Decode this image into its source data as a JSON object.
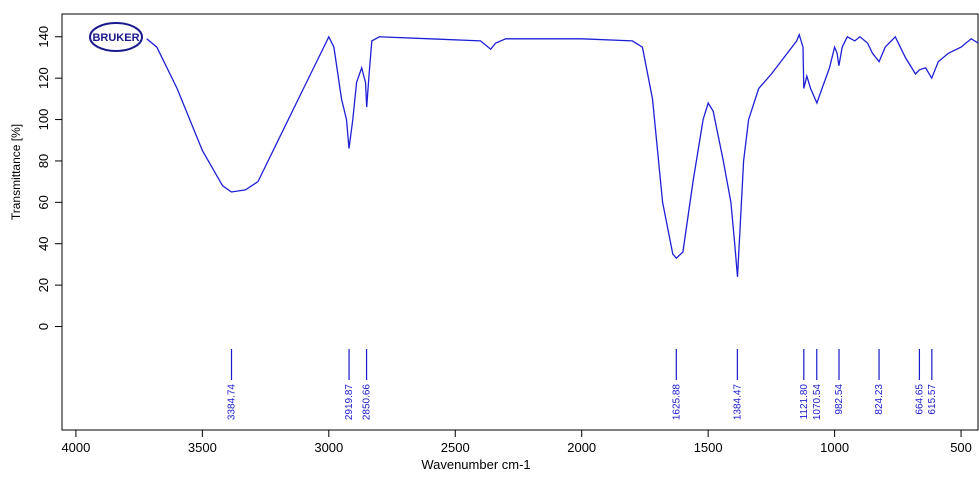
{
  "chart_data": {
    "type": "line",
    "logo": "BRUKER",
    "xlabel": "Wavenumber cm-1",
    "ylabel": "Transmittance [%]",
    "xlim": [
      4055,
      433
    ],
    "ylim": [
      -50,
      151
    ],
    "xticks": [
      4000,
      3500,
      3000,
      2500,
      2000,
      1500,
      1000,
      500
    ],
    "yticks": [
      0,
      20,
      40,
      60,
      80,
      100,
      120,
      140
    ],
    "series": [
      {
        "color": "#1f1fd6",
        "x": [
          3720,
          3680,
          3600,
          3500,
          3420,
          3385,
          3330,
          3280,
          3200,
          3100,
          3020,
          3000,
          2980,
          2950,
          2930,
          2920,
          2905,
          2890,
          2870,
          2855,
          2850,
          2842,
          2830,
          2800,
          2600,
          2400,
          2360,
          2340,
          2300,
          2000,
          1800,
          1760,
          1720,
          1680,
          1640,
          1626,
          1600,
          1560,
          1520,
          1500,
          1480,
          1440,
          1410,
          1395,
          1384,
          1375,
          1360,
          1340,
          1300,
          1250,
          1200,
          1150,
          1140,
          1125,
          1122,
          1110,
          1095,
          1070,
          1050,
          1020,
          1000,
          990,
          983,
          970,
          950,
          920,
          900,
          870,
          850,
          824,
          800,
          760,
          720,
          680,
          665,
          640,
          616,
          590,
          550,
          500,
          460,
          433
        ],
        "values": [
          139,
          135,
          115,
          85,
          68,
          65,
          66,
          70,
          90,
          115,
          135,
          140,
          135,
          110,
          100,
          86,
          100,
          118,
          125,
          118,
          106,
          120,
          138,
          140,
          139,
          138,
          134,
          137,
          139,
          139,
          138,
          135,
          110,
          60,
          35,
          33,
          36,
          70,
          100,
          108,
          104,
          80,
          60,
          40,
          24,
          45,
          80,
          100,
          115,
          122,
          130,
          138,
          141,
          135,
          115,
          121,
          115,
          108,
          115,
          125,
          135,
          132,
          126,
          135,
          140,
          138,
          140,
          137,
          132,
          128,
          135,
          140,
          130,
          122,
          124,
          125,
          120,
          128,
          132,
          135,
          139,
          137
        ]
      }
    ],
    "peaks": {
      "values": [
        3384.74,
        2919.87,
        2850.66,
        1625.88,
        1384.47,
        1121.8,
        1070.54,
        982.54,
        824.23,
        664.65,
        615.57
      ],
      "value_labels": [
        "3384.74",
        "2919.87",
        "2850.66",
        "1625.88",
        "1384.47",
        "1121.80",
        "1070.54",
        "982.54",
        "824.23",
        "664.65",
        "615.57"
      ]
    }
  }
}
